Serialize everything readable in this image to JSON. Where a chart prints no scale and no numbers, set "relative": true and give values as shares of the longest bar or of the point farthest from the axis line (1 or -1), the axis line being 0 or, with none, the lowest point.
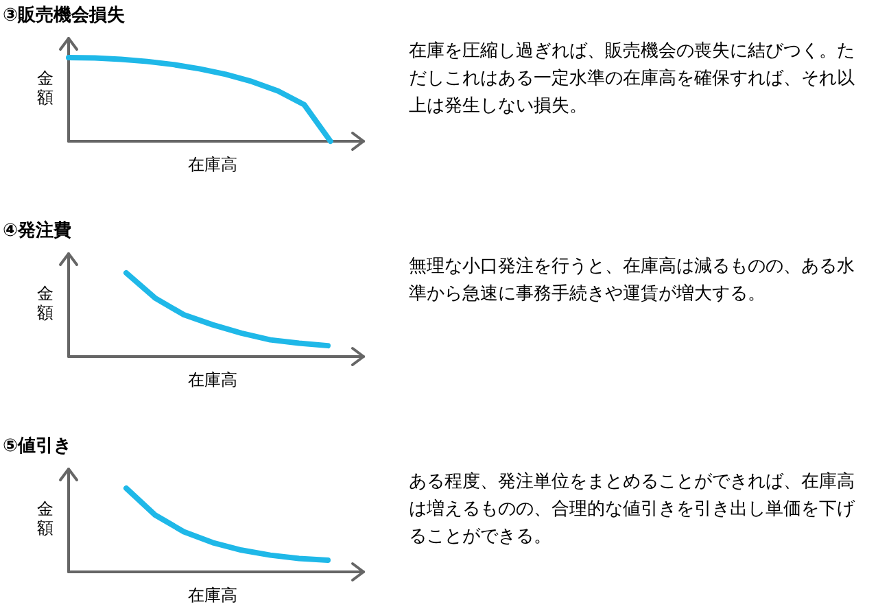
{
  "chart_data": [
    {
      "type": "line",
      "title": "③販売機会損失",
      "xlabel": "在庫高",
      "ylabel": "金額",
      "relative": true,
      "categories": [
        null,
        null,
        null,
        null,
        null,
        null,
        null,
        null,
        null,
        null,
        null,
        null
      ],
      "series": [
        {
          "color": "#1fb8e8",
          "values": [
            1,
            0.995,
            0.98,
            0.954,
            0.917,
            0.866,
            0.8,
            0.714,
            0.6,
            0.436,
            0,
            null
          ]
        }
      ],
      "annotations": [
        "在庫を圧縮し過ぎれば、販売機会の喪失に結びつく。ただしこれはある一定水準の在庫高を確保すれば、それ以上は発生しない損失。"
      ]
    },
    {
      "type": "line",
      "title": "④発注費",
      "xlabel": "在庫高",
      "ylabel": "金額",
      "relative": true,
      "categories": [
        null,
        null,
        null,
        null,
        null,
        null,
        null,
        null,
        null,
        null,
        null
      ],
      "series": [
        {
          "color": "#1fb8e8",
          "values": [
            null,
            null,
            1,
            0.7,
            0.5,
            0.38,
            0.28,
            0.2,
            0.16,
            0.13,
            null
          ]
        }
      ],
      "annotations": [
        "無理な小口発注を行うと、在庫高は減るものの、ある水準から急速に事務手続きや運賃が増大する。"
      ]
    },
    {
      "type": "line",
      "title": "⑤値引き",
      "xlabel": "在庫高",
      "ylabel": "金額",
      "relative": true,
      "categories": [
        null,
        null,
        null,
        null,
        null,
        null,
        null,
        null,
        null,
        null,
        null
      ],
      "series": [
        {
          "color": "#1fb8e8",
          "values": [
            null,
            null,
            1,
            0.68,
            0.48,
            0.35,
            0.26,
            0.2,
            0.16,
            0.14,
            null
          ]
        }
      ],
      "annotations": [
        "ある程度、発注単位をまとめることができれば、在庫高は増えるものの、合理的な値引きを引き出し単価を下げることができる。"
      ]
    }
  ]
}
